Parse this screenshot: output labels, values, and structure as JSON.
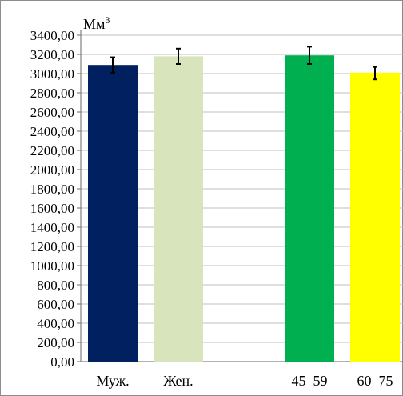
{
  "chart_data": {
    "type": "bar",
    "ylabel": "Мм",
    "ylabel_superscript": "3",
    "ylim": [
      0,
      3400
    ],
    "ytick_step": 200,
    "ytick_labels": [
      "0,00",
      "200,00",
      "400,00",
      "600,00",
      "800,00",
      "1000,00",
      "1200,00",
      "1400,00",
      "1600,00",
      "1800,00",
      "2000,00",
      "2200,00",
      "2400,00",
      "2600,00",
      "2800,00",
      "3000,00",
      "3200,00",
      "3400,00"
    ],
    "grid": true,
    "legend": "none",
    "categories": [
      "Муж.",
      "Жен.",
      "",
      "45–59",
      "60–75"
    ],
    "values": [
      3090,
      3180,
      null,
      3190,
      3010
    ],
    "error_low": [
      3010,
      3100,
      null,
      3100,
      2940
    ],
    "error_high": [
      3170,
      3260,
      null,
      3280,
      3070
    ],
    "colors": [
      "#002060",
      "#d8e4bc",
      "#ffffff",
      "#00b050",
      "#ffff00"
    ]
  }
}
